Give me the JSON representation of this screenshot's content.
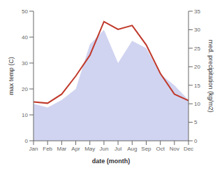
{
  "chart_data": {
    "type": "line",
    "categories": [
      "Jan",
      "Feb",
      "Mar",
      "Apr",
      "May",
      "Jun",
      "Jul",
      "Aug",
      "Sep",
      "Oct",
      "Nov",
      "Dec"
    ],
    "series": [
      {
        "type": "area",
        "axis": "y2",
        "color": "#b0b8e8",
        "values": [
          10,
          9,
          11,
          14,
          26,
          30,
          21,
          27,
          25,
          18,
          15,
          11
        ]
      },
      {
        "type": "line",
        "axis": "y",
        "color": "#c0392b",
        "values": [
          15,
          14.5,
          18,
          25,
          33,
          46,
          43,
          44.5,
          37,
          26,
          18,
          15.5
        ]
      }
    ],
    "xlabel": "date (month)",
    "ylabel": "max temp (C)",
    "y2label": "med. precipitation (kg/m2)",
    "ylim": [
      0,
      50
    ],
    "yticks": [
      0,
      10,
      20,
      30,
      40,
      50
    ],
    "y2lim": [
      0,
      35
    ],
    "y2ticks": [
      0,
      5,
      10,
      15,
      20,
      25,
      30,
      35
    ],
    "grid": false
  }
}
